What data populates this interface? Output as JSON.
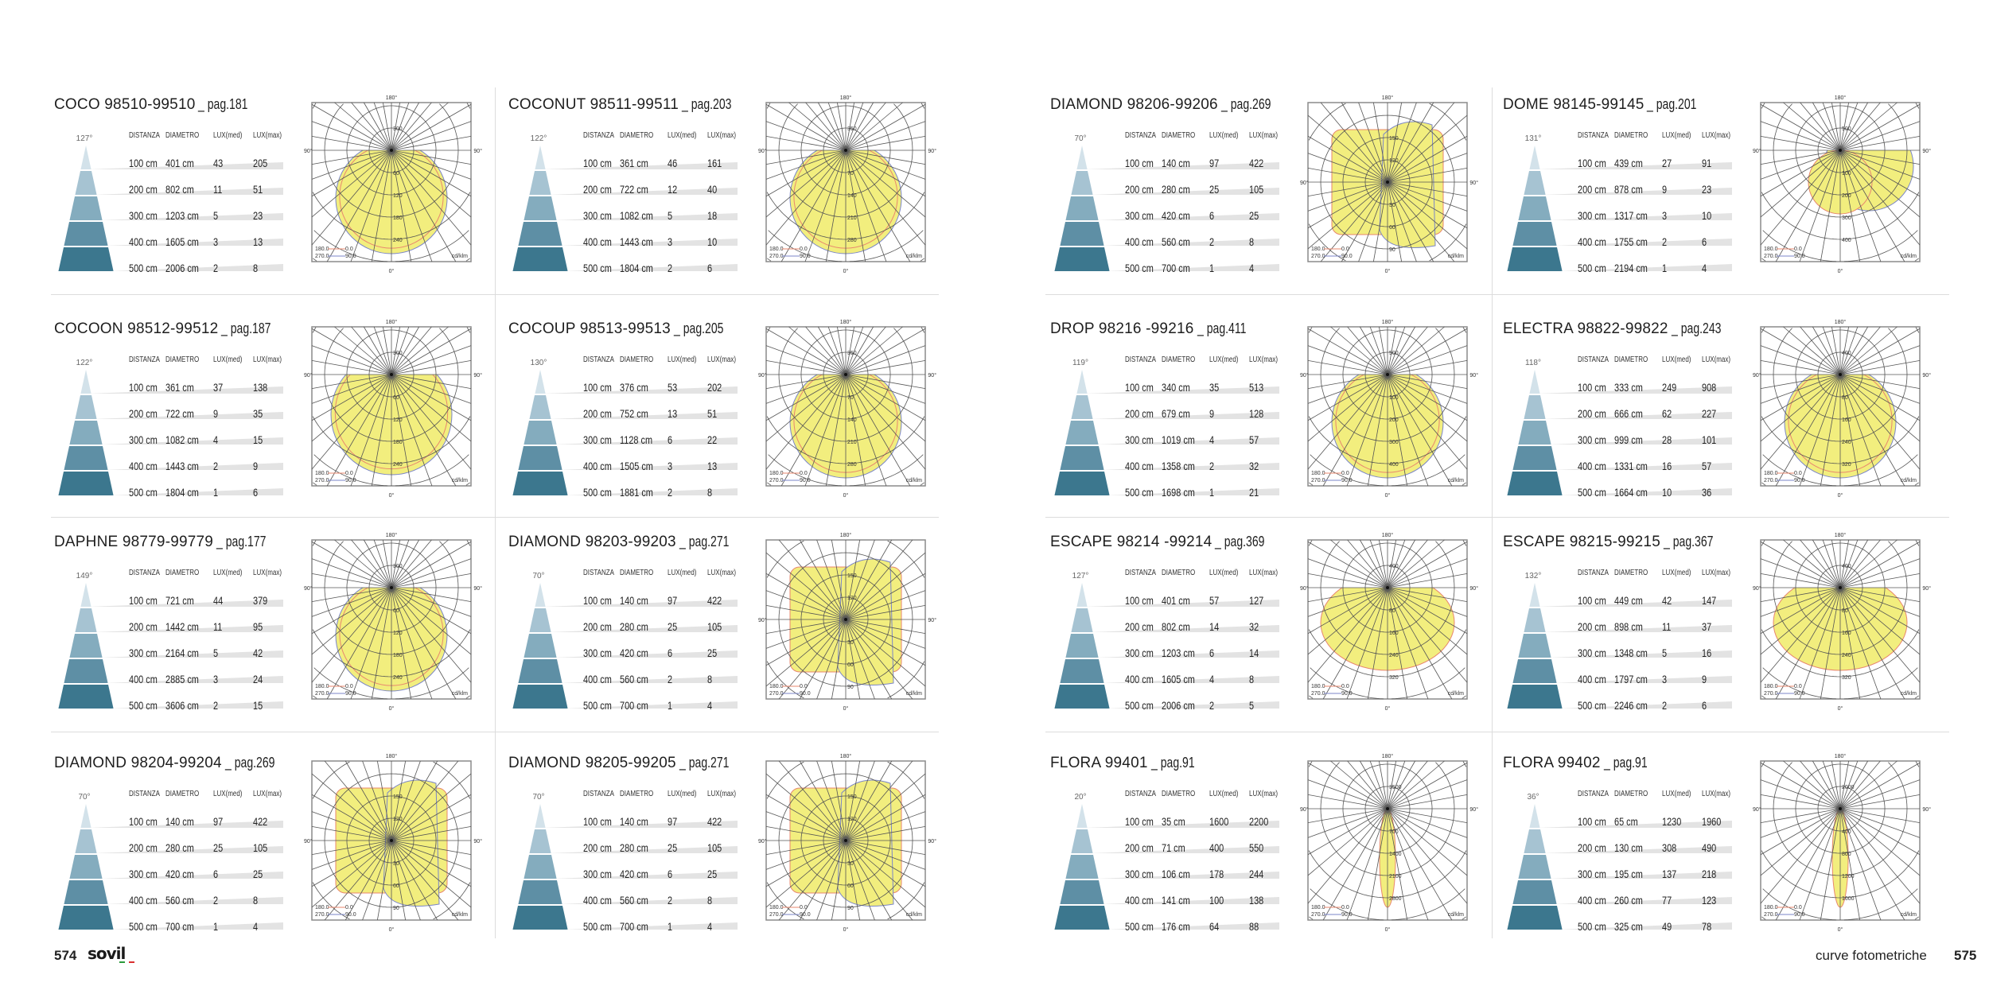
{
  "table_headers": {
    "distance": "DISTANZA",
    "diameter": "DIAMETRO",
    "lux_med": "LUX(med)",
    "lux_max": "LUX(max)"
  },
  "polar_labels": {
    "top": "180°",
    "left": "90°",
    "right": "90°",
    "bottom": "0°",
    "legend_a_left": "180.0",
    "legend_a_right": "0.0",
    "legend_b_left": "270.0",
    "legend_b_right": "90.0",
    "unit": "cd/klm"
  },
  "colors": {
    "beam": "#f2ee7e",
    "curve_c0": "#e8876e",
    "curve_c90": "#7b86c8",
    "pyramid": [
      "#d3e2ea",
      "#a6c3d2",
      "#84acbe",
      "#5e8fa5",
      "#3c778e"
    ]
  },
  "left_page": {
    "page_number": "574",
    "logo": "sovil",
    "panels": [
      {
        "name": "COCO 98510-99510",
        "pag": "_ pag.181",
        "angle": "127°",
        "shape": "round",
        "rings": [
          "60",
          "120",
          "180",
          "240",
          "300"
        ],
        "rows": [
          [
            "100 cm",
            "401 cm",
            "43",
            "205"
          ],
          [
            "200 cm",
            "802 cm",
            "11",
            "51"
          ],
          [
            "300 cm",
            "1203 cm",
            "5",
            "23"
          ],
          [
            "400 cm",
            "1605 cm",
            "3",
            "13"
          ],
          [
            "500 cm",
            "2006 cm",
            "2",
            "8"
          ]
        ]
      },
      {
        "name": "COCONUT 98511-99511",
        "pag": "_ pag.203",
        "angle": "122°",
        "shape": "round",
        "rings": [
          "70",
          "140",
          "210",
          "280",
          "350"
        ],
        "rows": [
          [
            "100 cm",
            "361 cm",
            "46",
            "161"
          ],
          [
            "200 cm",
            "722 cm",
            "12",
            "40"
          ],
          [
            "300 cm",
            "1082 cm",
            "5",
            "18"
          ],
          [
            "400 cm",
            "1443 cm",
            "3",
            "10"
          ],
          [
            "500 cm",
            "1804 cm",
            "2",
            "6"
          ]
        ]
      },
      {
        "name": "COCOON 98512-99512",
        "pag": "_ pag.187",
        "angle": "122°",
        "shape": "flat",
        "rings": [
          "60",
          "120",
          "180",
          "240",
          "300"
        ],
        "rows": [
          [
            "100 cm",
            "361 cm",
            "37",
            "138"
          ],
          [
            "200 cm",
            "722 cm",
            "9",
            "35"
          ],
          [
            "300 cm",
            "1082 cm",
            "4",
            "15"
          ],
          [
            "400 cm",
            "1443 cm",
            "2",
            "9"
          ],
          [
            "500 cm",
            "1804 cm",
            "1",
            "6"
          ]
        ]
      },
      {
        "name": "COCOUP 98513-99513",
        "pag": "_ pag.205",
        "angle": "130°",
        "shape": "round",
        "rings": [
          "70",
          "140",
          "210",
          "280",
          "350"
        ],
        "rows": [
          [
            "100 cm",
            "376 cm",
            "53",
            "202"
          ],
          [
            "200 cm",
            "752 cm",
            "13",
            "51"
          ],
          [
            "300 cm",
            "1128 cm",
            "6",
            "22"
          ],
          [
            "400 cm",
            "1505 cm",
            "3",
            "13"
          ],
          [
            "500 cm",
            "1881 cm",
            "2",
            "8"
          ]
        ]
      },
      {
        "name": "DAPHNE 98779-99779",
        "pag": "_ pag.177",
        "angle": "149°",
        "shape": "round",
        "rings": [
          "60",
          "120",
          "180",
          "240",
          "300"
        ],
        "rows": [
          [
            "100 cm",
            "721 cm",
            "44",
            "379"
          ],
          [
            "200 cm",
            "1442 cm",
            "11",
            "95"
          ],
          [
            "300 cm",
            "2164 cm",
            "5",
            "42"
          ],
          [
            "400 cm",
            "2885 cm",
            "3",
            "24"
          ],
          [
            "500 cm",
            "3606 cm",
            "2",
            "15"
          ]
        ]
      },
      {
        "name": "DIAMOND 98203-99203",
        "pag": "_ pag.271",
        "angle": "70°",
        "shape": "square",
        "rings": [
          "30",
          "60",
          "90",
          "120",
          "150"
        ],
        "rows": [
          [
            "100 cm",
            "140 cm",
            "97",
            "422"
          ],
          [
            "200 cm",
            "280 cm",
            "25",
            "105"
          ],
          [
            "300 cm",
            "420 cm",
            "6",
            "25"
          ],
          [
            "400 cm",
            "560 cm",
            "2",
            "8"
          ],
          [
            "500 cm",
            "700 cm",
            "1",
            "4"
          ]
        ]
      },
      {
        "name": "DIAMOND 98204-99204",
        "pag": "_ pag.269",
        "angle": "70°",
        "shape": "square",
        "rings": [
          "30",
          "60",
          "90",
          "120",
          "150"
        ],
        "rows": [
          [
            "100 cm",
            "140 cm",
            "97",
            "422"
          ],
          [
            "200 cm",
            "280 cm",
            "25",
            "105"
          ],
          [
            "300 cm",
            "420 cm",
            "6",
            "25"
          ],
          [
            "400 cm",
            "560 cm",
            "2",
            "8"
          ],
          [
            "500 cm",
            "700 cm",
            "1",
            "4"
          ]
        ]
      },
      {
        "name": "DIAMOND 98205-99205",
        "pag": "_ pag.271",
        "angle": "70°",
        "shape": "square",
        "rings": [
          "30",
          "60",
          "90",
          "120",
          "150"
        ],
        "rows": [
          [
            "100 cm",
            "140 cm",
            "97",
            "422"
          ],
          [
            "200 cm",
            "280 cm",
            "25",
            "105"
          ],
          [
            "300 cm",
            "420 cm",
            "6",
            "25"
          ],
          [
            "400 cm",
            "560 cm",
            "2",
            "8"
          ],
          [
            "500 cm",
            "700 cm",
            "1",
            "4"
          ]
        ]
      }
    ]
  },
  "right_page": {
    "section_title": "curve fotometriche",
    "page_number": "575",
    "panels": [
      {
        "name": "DIAMOND 98206-99206",
        "pag": "_ pag.269",
        "angle": "70°",
        "shape": "square",
        "rings": [
          "30",
          "60",
          "90",
          "120",
          "150"
        ],
        "rows": [
          [
            "100 cm",
            "140 cm",
            "97",
            "422"
          ],
          [
            "200 cm",
            "280 cm",
            "25",
            "105"
          ],
          [
            "300 cm",
            "420 cm",
            "6",
            "25"
          ],
          [
            "400 cm",
            "560 cm",
            "2",
            "8"
          ],
          [
            "500 cm",
            "700 cm",
            "1",
            "4"
          ]
        ]
      },
      {
        "name": "DOME 98145-99145",
        "pag": "_ pag.201",
        "angle": "131°",
        "shape": "offset",
        "rings": [
          "100",
          "200",
          "300",
          "400",
          "500"
        ],
        "rows": [
          [
            "100 cm",
            "439 cm",
            "27",
            "91"
          ],
          [
            "200 cm",
            "878 cm",
            "9",
            "23"
          ],
          [
            "300 cm",
            "1317 cm",
            "3",
            "10"
          ],
          [
            "400 cm",
            "1755 cm",
            "2",
            "6"
          ],
          [
            "500 cm",
            "2194 cm",
            "1",
            "4"
          ]
        ]
      },
      {
        "name": "DROP  98216 -99216",
        "pag": "_ pag.411",
        "angle": "119°",
        "shape": "round",
        "rings": [
          "100",
          "200",
          "300",
          "400",
          "500"
        ],
        "rows": [
          [
            "100 cm",
            "340 cm",
            "35",
            "513"
          ],
          [
            "200 cm",
            "679 cm",
            "9",
            "128"
          ],
          [
            "300 cm",
            "1019 cm",
            "4",
            "57"
          ],
          [
            "400 cm",
            "1358 cm",
            "2",
            "32"
          ],
          [
            "500 cm",
            "1698 cm",
            "1",
            "21"
          ]
        ]
      },
      {
        "name": "ELECTRA 98822-99822",
        "pag": "_ pag.243",
        "angle": "118°",
        "shape": "round",
        "rings": [
          "80",
          "160",
          "240",
          "320",
          "400"
        ],
        "rows": [
          [
            "100 cm",
            "333 cm",
            "249",
            "908"
          ],
          [
            "200 cm",
            "666 cm",
            "62",
            "227"
          ],
          [
            "300 cm",
            "999 cm",
            "28",
            "101"
          ],
          [
            "400 cm",
            "1331 cm",
            "16",
            "57"
          ],
          [
            "500 cm",
            "1664 cm",
            "10",
            "36"
          ]
        ]
      },
      {
        "name": "ESCAPE 98214 -99214",
        "pag": "_ pag.369",
        "angle": "127°",
        "shape": "wide",
        "rings": [
          "80",
          "160",
          "240",
          "320",
          "400"
        ],
        "rows": [
          [
            "100 cm",
            "401 cm",
            "57",
            "127"
          ],
          [
            "200 cm",
            "802 cm",
            "14",
            "32"
          ],
          [
            "300 cm",
            "1203 cm",
            "6",
            "14"
          ],
          [
            "400 cm",
            "1605 cm",
            "4",
            "8"
          ],
          [
            "500 cm",
            "2006 cm",
            "2",
            "5"
          ]
        ]
      },
      {
        "name": "ESCAPE 98215-99215",
        "pag": "_ pag.367",
        "angle": "132°",
        "shape": "wide",
        "rings": [
          "80",
          "160",
          "240",
          "320",
          "400"
        ],
        "rows": [
          [
            "100 cm",
            "449 cm",
            "42",
            "147"
          ],
          [
            "200 cm",
            "898 cm",
            "11",
            "37"
          ],
          [
            "300 cm",
            "1348 cm",
            "5",
            "16"
          ],
          [
            "400 cm",
            "1797 cm",
            "3",
            "9"
          ],
          [
            "500 cm",
            "2246 cm",
            "2",
            "6"
          ]
        ]
      },
      {
        "name": "FLORA 99401",
        "pag": "_ pag.91",
        "angle": "20°",
        "shape": "narrow",
        "rings": [
          "700",
          "1400",
          "2100",
          "2800",
          "3500"
        ],
        "rows": [
          [
            "100 cm",
            "35 cm",
            "1600",
            "2200"
          ],
          [
            "200 cm",
            "71 cm",
            "400",
            "550"
          ],
          [
            "300 cm",
            "106 cm",
            "178",
            "244"
          ],
          [
            "400 cm",
            "141 cm",
            "100",
            "138"
          ],
          [
            "500 cm",
            "176 cm",
            "64",
            "88"
          ]
        ]
      },
      {
        "name": "FLORA 99402",
        "pag": "_ pag.91",
        "angle": "36°",
        "shape": "narrow",
        "rings": [
          "400",
          "800",
          "1200",
          "1600",
          "2000"
        ],
        "rows": [
          [
            "100 cm",
            "65 cm",
            "1230",
            "1960"
          ],
          [
            "200 cm",
            "130 cm",
            "308",
            "490"
          ],
          [
            "300 cm",
            "195 cm",
            "137",
            "218"
          ],
          [
            "400 cm",
            "260 cm",
            "77",
            "123"
          ],
          [
            "500 cm",
            "325 cm",
            "49",
            "78"
          ]
        ]
      }
    ]
  }
}
